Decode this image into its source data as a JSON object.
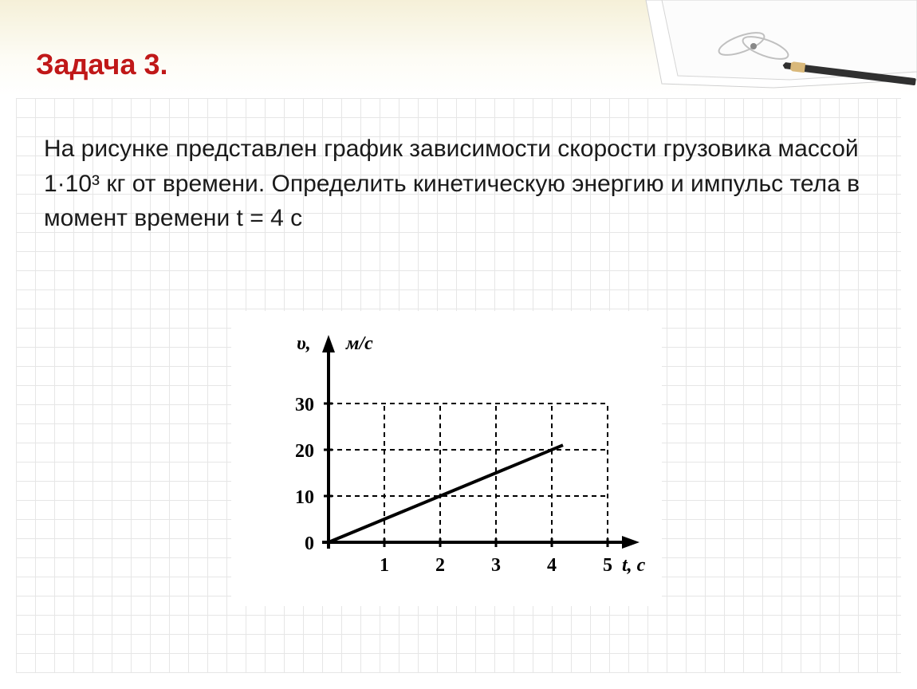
{
  "title": "Задача 3.",
  "problem_text": "На рисунке представлен график зависимости скорости грузовика массой 1·10³ кг от времени. Определить кинетическую энергию  и импульс тела в момент времени t = 4 с",
  "chart": {
    "type": "line",
    "y_axis_label": "υ,",
    "y_axis_unit": "м/с",
    "x_axis_label": "t, c",
    "x_ticks": [
      "1",
      "2",
      "3",
      "4",
      "5"
    ],
    "y_ticks": [
      "0",
      "10",
      "20",
      "30"
    ],
    "x_tick_values": [
      1,
      2,
      3,
      4,
      5
    ],
    "y_tick_values": [
      0,
      10,
      20,
      30
    ],
    "data_points": [
      {
        "x": 0,
        "y": 0
      },
      {
        "x": 4.2,
        "y": 21
      }
    ],
    "background_color": "#ffffff",
    "axis_color": "#000000",
    "grid_color": "#000000",
    "line_color": "#000000",
    "line_width": 4,
    "axis_width": 4,
    "grid_dash": "6,5",
    "tick_fontsize": 24,
    "label_fontsize": 24
  },
  "colors": {
    "title_color": "#c01818",
    "text_color": "#1a1a1a",
    "grid_line": "#e6e6e6",
    "paper_bg": "#ffffff",
    "top_gradient_start": "#f5f0d8"
  }
}
